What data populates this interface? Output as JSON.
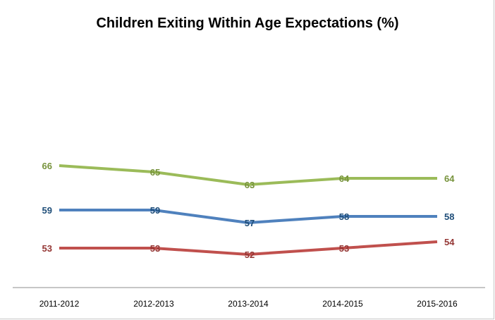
{
  "chart_data": {
    "type": "line",
    "title": "Children Exiting Within Age Expectations (%)",
    "categories": [
      "2011-2012",
      "2012-2013",
      "2013-2014",
      "2014-2015",
      "2015-2016"
    ],
    "series": [
      {
        "values": [
          66,
          65,
          63,
          64,
          64
        ],
        "color": "#9bbb59"
      },
      {
        "values": [
          59,
          59,
          57,
          58,
          58
        ],
        "color": "#4f81bd"
      },
      {
        "values": [
          53,
          53,
          52,
          53,
          54
        ],
        "color": "#c0504d"
      }
    ],
    "label_colors": [
      "#77933c",
      "#1f4e79",
      "#943634"
    ],
    "grid": false,
    "legend": "none",
    "data_labels": true
  }
}
